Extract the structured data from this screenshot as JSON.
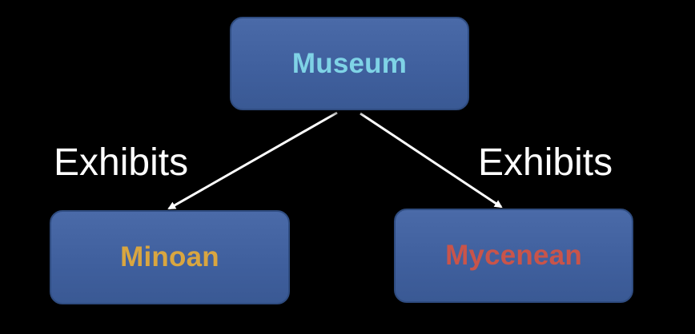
{
  "nodes": {
    "root": {
      "label": "Museum",
      "color": "#7fd3e6"
    },
    "left": {
      "label": "Minoan",
      "color": "#d9a640"
    },
    "right": {
      "label": "Mycenean",
      "color": "#c9544a"
    }
  },
  "edges": {
    "left_label": "Exhibits",
    "right_label": "Exhibits",
    "color": "#ffffff"
  },
  "colors": {
    "background": "#000000",
    "node_fill": "#3f5f9d"
  }
}
